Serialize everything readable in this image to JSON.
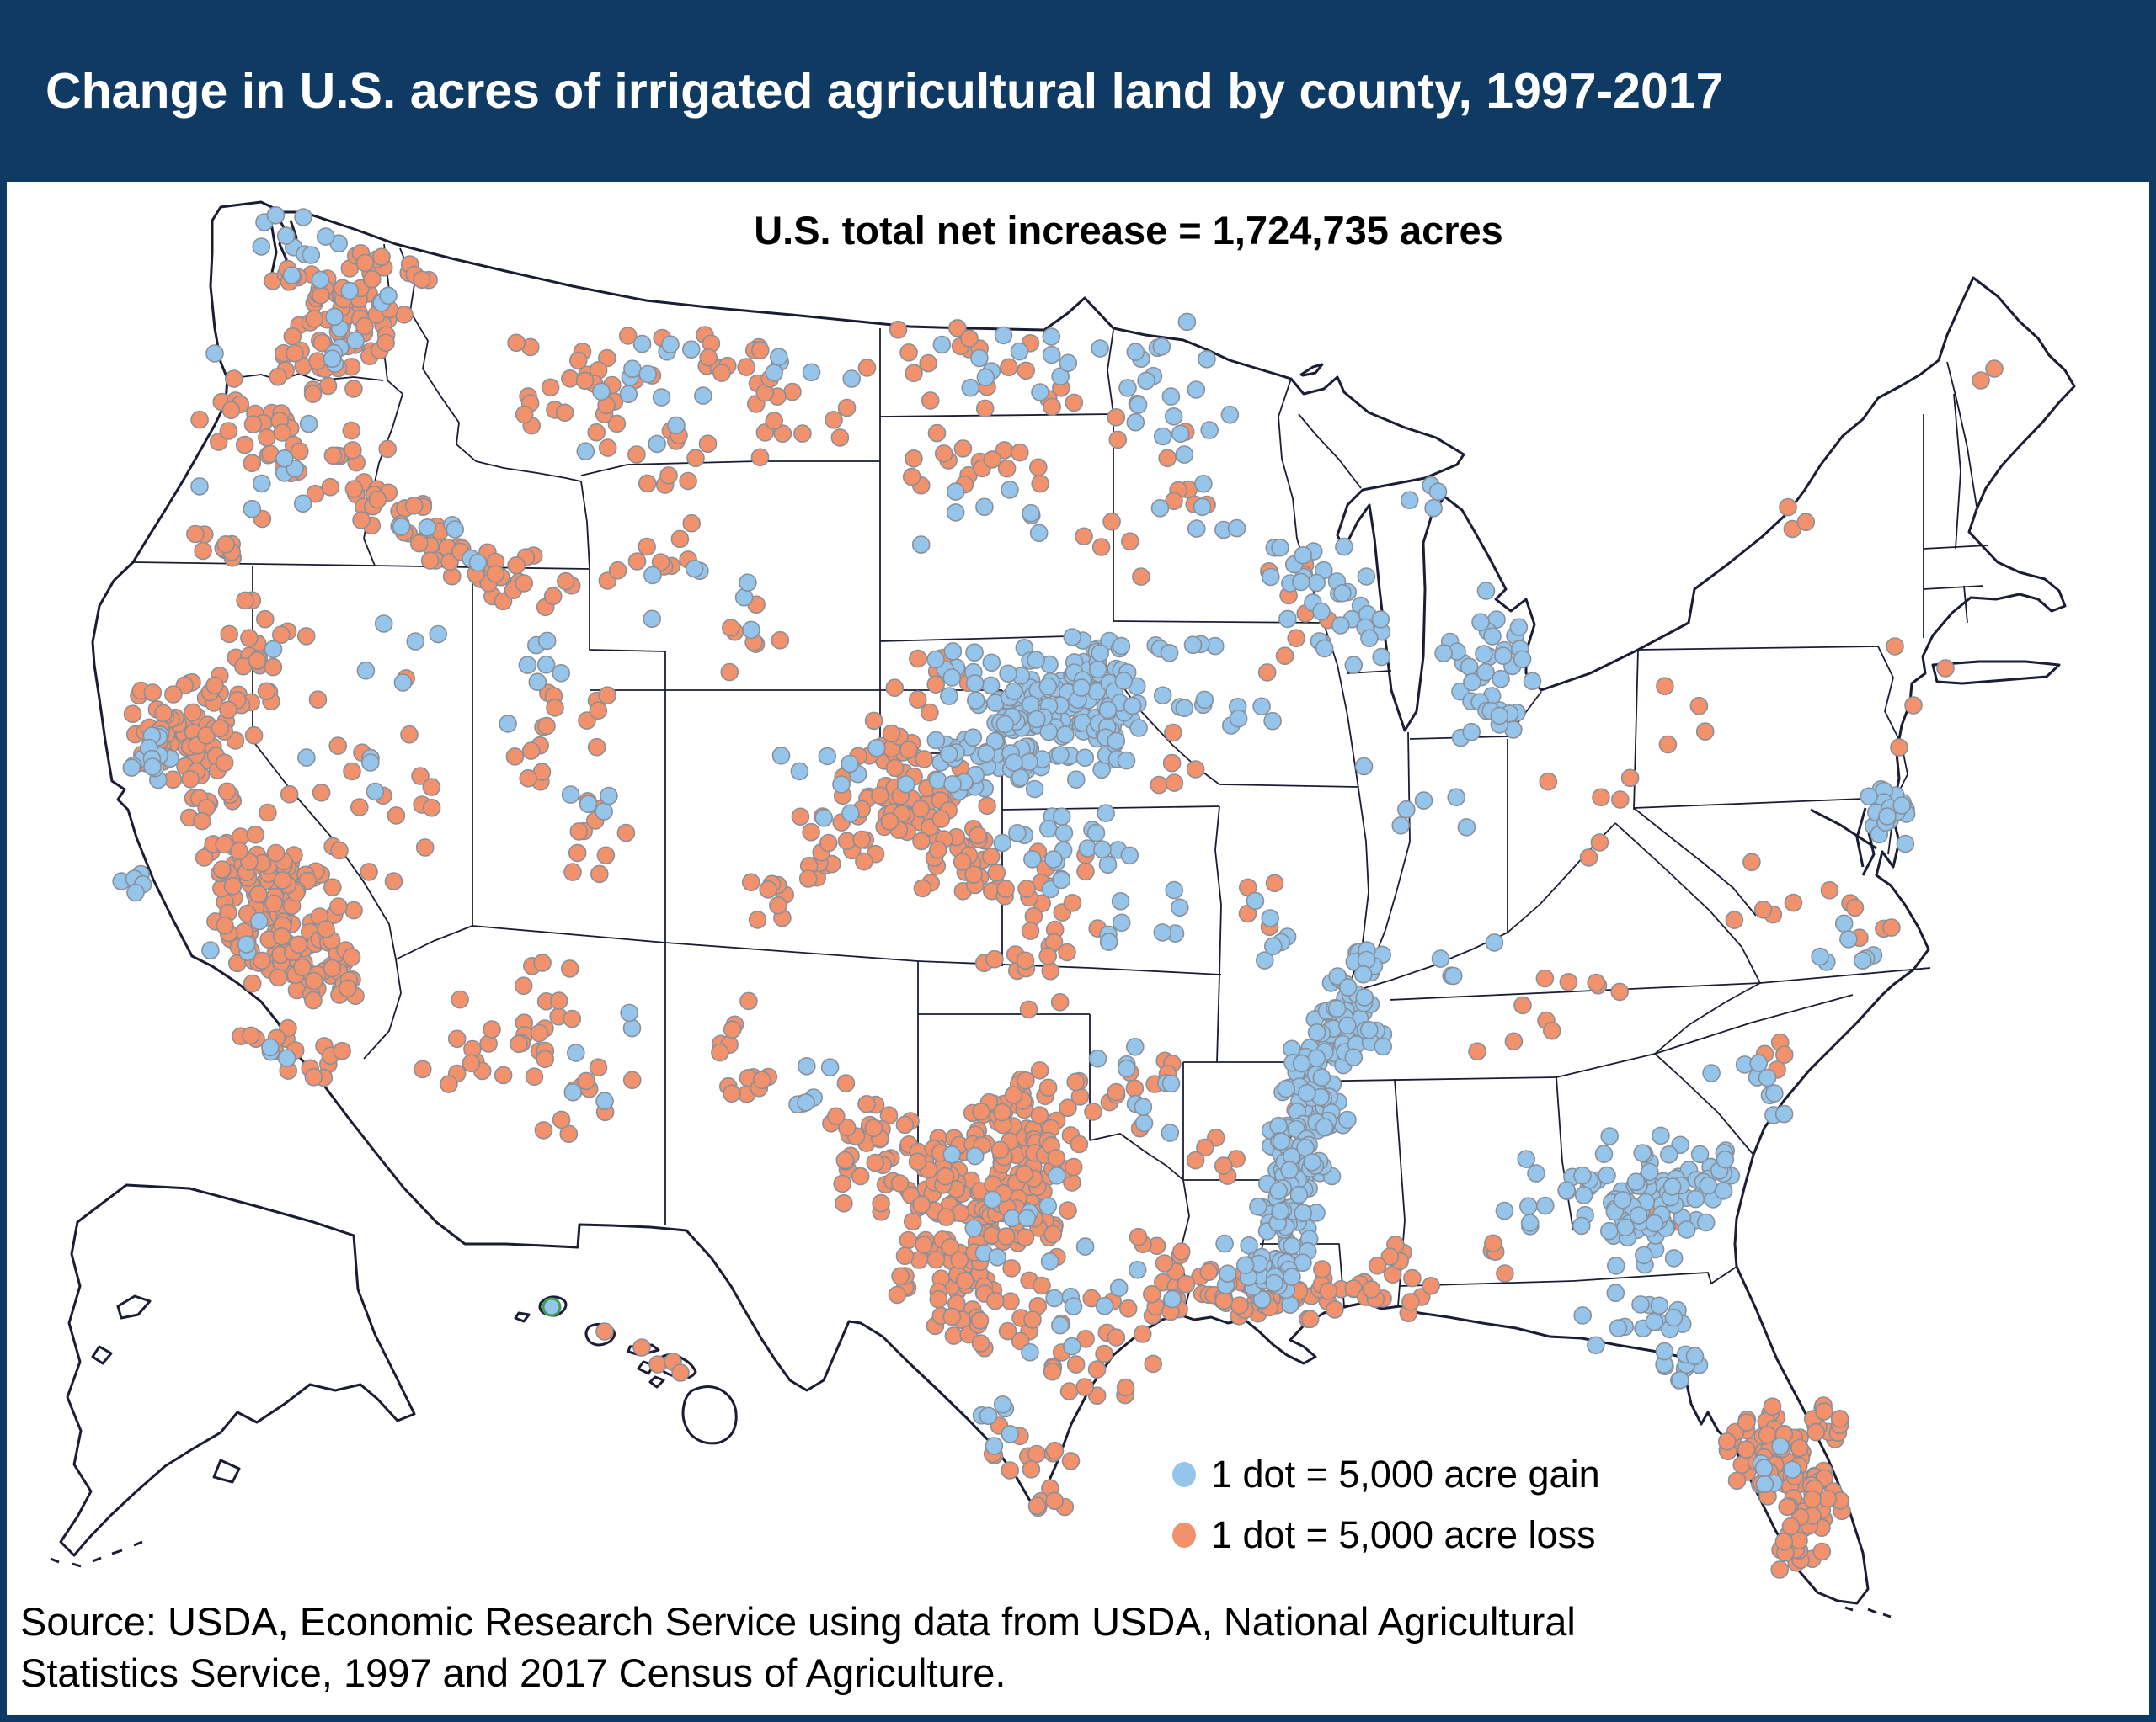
{
  "header": {
    "title": "Change in U.S. acres of irrigated agricultural land by county, 1997-2017"
  },
  "map": {
    "subtitle": "U.S. total net increase = 1,724,735 acres"
  },
  "legend": {
    "gain_label": "1 dot = 5,000 acre gain",
    "loss_label": "1 dot = 5,000 acre loss"
  },
  "source": {
    "line1": "Source: USDA, Economic Research Service using data from USDA, National Agricultural",
    "line2": "Statistics Service, 1997 and 2017 Census of Agriculture."
  },
  "colors": {
    "gain": "#95c5ea",
    "loss": "#f2926d",
    "dot_stroke": "#8a8f99",
    "header_bg": "#0f3a63",
    "line": "#1a1d33",
    "hawaii_ring": "#3f9e53"
  },
  "chart_data": {
    "type": "dot-density-map",
    "title": "Change in U.S. acres of irrigated agricultural land by county, 1997-2017",
    "annotation": "U.S. total net increase = 1,724,735 acres",
    "total_net_increase_acres": 1724735,
    "dot_value_acres": 5000,
    "series": [
      {
        "name": "gain",
        "label": "1 dot = 5,000 acre gain",
        "color": "#95c5ea"
      },
      {
        "name": "loss",
        "label": "1 dot = 5,000 acre loss",
        "color": "#f2926d"
      }
    ],
    "legend_position": "bottom-right of map, over Texas/Gulf",
    "clusters_format": "[cx, cy, rx, ry, n] in 2560x2046 pixel space",
    "clusters": {
      "loss": [
        [
          415,
          375,
          75,
          55,
          48
        ],
        [
          380,
          432,
          55,
          35,
          18
        ],
        [
          462,
          322,
          55,
          35,
          14
        ],
        [
          350,
          335,
          40,
          30,
          8
        ],
        [
          285,
          492,
          85,
          55,
          18
        ],
        [
          352,
          548,
          75,
          45,
          14
        ],
        [
          262,
          638,
          55,
          35,
          10
        ],
        [
          425,
          555,
          35,
          55,
          8
        ],
        [
          485,
          618,
          55,
          38,
          18
        ],
        [
          535,
          658,
          55,
          32,
          16
        ],
        [
          592,
          688,
          55,
          32,
          14
        ],
        [
          645,
          700,
          45,
          28,
          8
        ],
        [
          700,
          450,
          110,
          70,
          26
        ],
        [
          855,
          425,
          95,
          55,
          14
        ],
        [
          950,
          487,
          95,
          65,
          14
        ],
        [
          775,
          548,
          70,
          40,
          10
        ],
        [
          800,
          660,
          85,
          55,
          10
        ],
        [
          905,
          755,
          75,
          45,
          7
        ],
        [
          230,
          865,
          70,
          65,
          65
        ],
        [
          285,
          805,
          50,
          40,
          18
        ],
        [
          320,
          745,
          55,
          45,
          10
        ],
        [
          330,
          1090,
          85,
          85,
          120
        ],
        [
          390,
          1150,
          60,
          50,
          28
        ],
        [
          285,
          1025,
          50,
          40,
          22
        ],
        [
          250,
          960,
          35,
          35,
          10
        ],
        [
          330,
          1242,
          55,
          28,
          10
        ],
        [
          385,
          1268,
          35,
          22,
          6
        ],
        [
          420,
          905,
          120,
          140,
          22
        ],
        [
          655,
          855,
          75,
          70,
          16
        ],
        [
          700,
          1005,
          65,
          65,
          10
        ],
        [
          610,
          1205,
          95,
          75,
          22
        ],
        [
          700,
          1300,
          75,
          45,
          12
        ],
        [
          555,
          1282,
          55,
          35,
          6
        ],
        [
          880,
          1250,
          40,
          85,
          14
        ],
        [
          1040,
          1380,
          60,
          90,
          35
        ],
        [
          1080,
          950,
          85,
          75,
          55
        ],
        [
          1130,
          1010,
          60,
          50,
          25
        ],
        [
          990,
          1000,
          55,
          45,
          15
        ],
        [
          920,
          1060,
          38,
          48,
          10
        ],
        [
          1170,
          1420,
          95,
          105,
          150
        ],
        [
          1230,
          1330,
          70,
          55,
          40
        ],
        [
          1120,
          1520,
          65,
          55,
          30
        ],
        [
          1185,
          1575,
          60,
          40,
          18
        ],
        [
          1235,
          1060,
          70,
          60,
          20
        ],
        [
          1225,
          1150,
          60,
          45,
          12
        ],
        [
          1105,
          800,
          55,
          45,
          10
        ],
        [
          1065,
          870,
          40,
          35,
          6
        ],
        [
          1150,
          560,
          115,
          75,
          18
        ],
        [
          1150,
          430,
          100,
          55,
          14
        ],
        [
          1290,
          470,
          55,
          35,
          6
        ],
        [
          1390,
          560,
          70,
          60,
          8
        ],
        [
          1340,
          650,
          50,
          40,
          5
        ],
        [
          1420,
          900,
          60,
          40,
          5
        ],
        [
          1555,
          760,
          55,
          45,
          6
        ],
        [
          1520,
          690,
          30,
          25,
          4
        ],
        [
          1500,
          1050,
          60,
          50,
          4
        ],
        [
          1350,
          1300,
          75,
          45,
          10
        ],
        [
          1440,
          1370,
          50,
          25,
          6
        ],
        [
          1300,
          1620,
          90,
          60,
          16
        ],
        [
          1350,
          1560,
          60,
          40,
          10
        ],
        [
          1230,
          1735,
          50,
          45,
          12
        ],
        [
          1245,
          1795,
          30,
          25,
          5
        ],
        [
          1450,
          1540,
          70,
          30,
          14
        ],
        [
          1390,
          1500,
          50,
          35,
          8
        ],
        [
          1470,
          1540,
          55,
          28,
          16
        ],
        [
          1540,
          1545,
          60,
          25,
          14
        ],
        [
          1600,
          1530,
          50,
          28,
          10
        ],
        [
          1650,
          1545,
          40,
          22,
          8
        ],
        [
          1660,
          1500,
          50,
          40,
          8
        ],
        [
          1760,
          1480,
          40,
          40,
          4
        ],
        [
          1560,
          1340,
          30,
          30,
          4
        ],
        [
          1800,
          1230,
          80,
          40,
          5
        ],
        [
          1850,
          950,
          90,
          70,
          6
        ],
        [
          1900,
          1150,
          80,
          50,
          5
        ],
        [
          2120,
          1080,
          70,
          50,
          6
        ],
        [
          2210,
          1100,
          50,
          35,
          5
        ],
        [
          2110,
          1260,
          40,
          30,
          4
        ],
        [
          1990,
          1435,
          30,
          25,
          3
        ],
        [
          2090,
          1720,
          55,
          55,
          45
        ],
        [
          2150,
          1780,
          45,
          45,
          35
        ],
        [
          2135,
          1840,
          40,
          30,
          15
        ],
        [
          2165,
          1700,
          35,
          30,
          12
        ],
        [
          2140,
          628,
          50,
          35,
          3
        ],
        [
          1980,
          855,
          60,
          45,
          4
        ]
      ],
      "gain": [
        [
          350,
          300,
          55,
          45,
          12
        ],
        [
          428,
          390,
          55,
          45,
          10
        ],
        [
          300,
          560,
          110,
          70,
          8
        ],
        [
          180,
          900,
          50,
          32,
          13
        ],
        [
          170,
          1030,
          35,
          55,
          5
        ],
        [
          300,
          1120,
          55,
          35,
          4
        ],
        [
          340,
          1240,
          25,
          18,
          3
        ],
        [
          430,
          850,
          110,
          130,
          10
        ],
        [
          520,
          640,
          80,
          40,
          7
        ],
        [
          645,
          800,
          65,
          60,
          7
        ],
        [
          700,
          950,
          55,
          55,
          4
        ],
        [
          700,
          1255,
          75,
          65,
          5
        ],
        [
          950,
          1300,
          80,
          80,
          6
        ],
        [
          800,
          480,
          140,
          75,
          14
        ],
        [
          950,
          430,
          60,
          40,
          5
        ],
        [
          855,
          705,
          95,
          65,
          7
        ],
        [
          1000,
          920,
          90,
          60,
          10
        ],
        [
          1190,
          440,
          110,
          60,
          12
        ],
        [
          1180,
          620,
          100,
          55,
          8
        ],
        [
          1360,
          430,
          70,
          50,
          10
        ],
        [
          1400,
          510,
          65,
          55,
          10
        ],
        [
          1420,
          600,
          50,
          45,
          6
        ],
        [
          1230,
          855,
          120,
          80,
          150
        ],
        [
          1300,
          790,
          55,
          40,
          28
        ],
        [
          1160,
          900,
          70,
          45,
          22
        ],
        [
          1330,
          870,
          40,
          40,
          15
        ],
        [
          1285,
          1010,
          90,
          50,
          22
        ],
        [
          1360,
          1090,
          70,
          45,
          8
        ],
        [
          1440,
          840,
          90,
          50,
          10
        ],
        [
          1380,
          760,
          60,
          40,
          6
        ],
        [
          1560,
          700,
          65,
          55,
          22
        ],
        [
          1600,
          760,
          45,
          35,
          10
        ],
        [
          1760,
          770,
          55,
          60,
          26
        ],
        [
          1775,
          850,
          40,
          30,
          12
        ],
        [
          1700,
          600,
          30,
          25,
          4
        ],
        [
          1690,
          950,
          70,
          60,
          6
        ],
        [
          1520,
          1100,
          80,
          70,
          6
        ],
        [
          1750,
          1150,
          60,
          40,
          4
        ],
        [
          1585,
          1220,
          38,
          48,
          38
        ],
        [
          1562,
          1300,
          38,
          58,
          52
        ],
        [
          1542,
          1380,
          38,
          58,
          58
        ],
        [
          1522,
          1460,
          36,
          52,
          48
        ],
        [
          1507,
          1520,
          33,
          33,
          18
        ],
        [
          1610,
          1160,
          33,
          38,
          16
        ],
        [
          1620,
          1230,
          33,
          33,
          14
        ],
        [
          1380,
          1320,
          60,
          35,
          6
        ],
        [
          1330,
          1260,
          40,
          30,
          4
        ],
        [
          1190,
          1440,
          80,
          80,
          12
        ],
        [
          1270,
          1560,
          70,
          50,
          6
        ],
        [
          1180,
          1690,
          50,
          40,
          6
        ],
        [
          1345,
          1525,
          60,
          50,
          5
        ],
        [
          1800,
          1420,
          55,
          80,
          7
        ],
        [
          1950,
          1430,
          95,
          75,
          85
        ],
        [
          2020,
          1400,
          40,
          40,
          15
        ],
        [
          1945,
          1565,
          70,
          35,
          15
        ],
        [
          1985,
          1630,
          35,
          35,
          10
        ],
        [
          2080,
          1300,
          55,
          40,
          9
        ],
        [
          2180,
          1130,
          60,
          35,
          7
        ],
        [
          2243,
          965,
          25,
          35,
          24
        ],
        [
          2105,
          1745,
          25,
          25,
          6
        ],
        [
          1480,
          1500,
          40,
          30,
          8
        ],
        [
          1600,
          1185,
          40,
          30,
          6
        ]
      ],
      "singles": [
        [
          655,
          1553,
          "gain",
          "ring"
        ],
        [
          255,
          420,
          "gain",
          ""
        ],
        [
          718,
          1582,
          "loss",
          ""
        ],
        [
          762,
          1601,
          "loss",
          ""
        ],
        [
          781,
          1621,
          "loss",
          ""
        ],
        [
          799,
          1618,
          "loss",
          ""
        ],
        [
          808,
          1631,
          "loss",
          ""
        ],
        [
          2352,
          452,
          "loss",
          ""
        ],
        [
          2368,
          438,
          "loss",
          ""
        ],
        [
          2250,
          768,
          "loss",
          ""
        ],
        [
          2310,
          794,
          "loss",
          ""
        ],
        [
          2272,
          838,
          "loss",
          ""
        ],
        [
          2255,
          888,
          "loss",
          ""
        ]
      ]
    }
  }
}
